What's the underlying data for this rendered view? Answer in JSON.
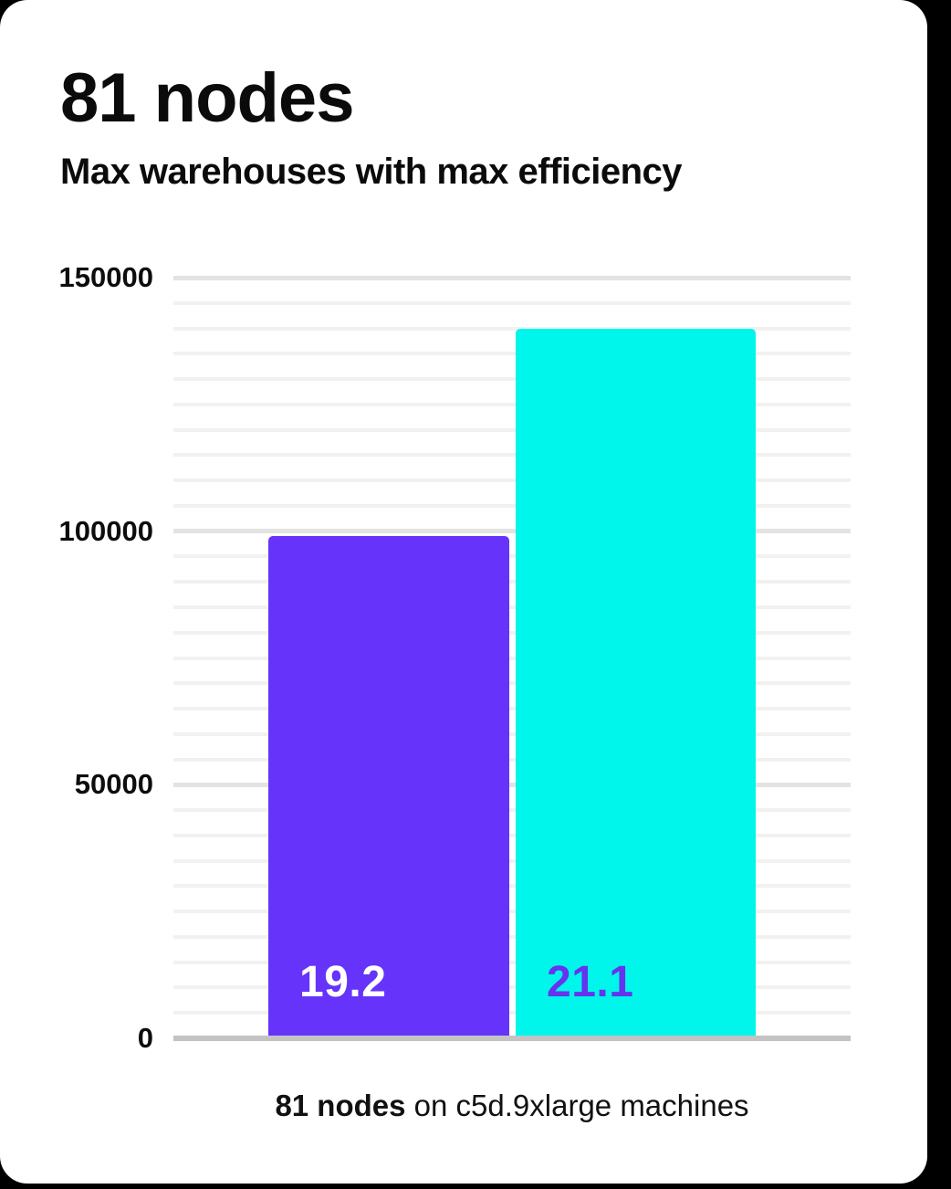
{
  "header": {
    "title": "81 nodes",
    "subtitle": "Max warehouses with max efficiency"
  },
  "caption": {
    "bold": "81 nodes",
    "rest": " on c5d.9xlarge machines"
  },
  "colors": {
    "page_bg": "#000000",
    "card_bg": "#FFFFFF",
    "bars": [
      "#6633FA",
      "#00F5EB"
    ],
    "bar_label_colors": [
      "#FFFFFF",
      "#6633EE"
    ],
    "grid_minor": "#F1F1F1",
    "grid_major": "#E3E3E3",
    "axis_line": "#C3C3C3",
    "text": "#0B0B0B"
  },
  "chart_data": {
    "type": "bar",
    "title": "81 nodes",
    "subtitle": "Max warehouses with max efficiency",
    "categories": [
      "19.2",
      "21.1"
    ],
    "values": [
      99000,
      140000
    ],
    "bar_labels": [
      "19.2",
      "21.1"
    ],
    "xlabel": "",
    "ylabel": "",
    "ylim": [
      0,
      150000
    ],
    "yticks": [
      0,
      50000,
      100000,
      150000
    ],
    "minor_grid_step": 5000,
    "major_grid_step": 50000,
    "grid": "horizontal",
    "legend": "none",
    "caption": "81 nodes on c5d.9xlarge machines"
  }
}
